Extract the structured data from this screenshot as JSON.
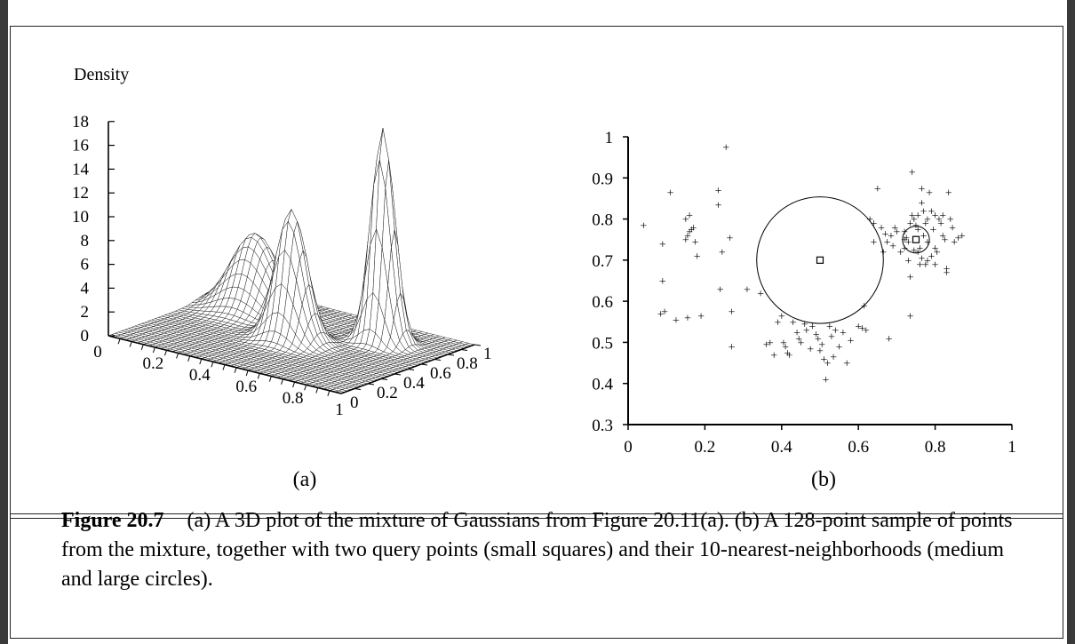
{
  "figure": {
    "label": "Figure 20.7",
    "caption": "(a) A 3D plot of the mixture of Gaussians from Figure 20.11(a). (b) A 128-point sample of points from the mixture, together with two query points (small squares) and their 10-nearest-neighborhoods (medium and large circles)."
  },
  "chart_data": [
    {
      "type": "surface",
      "panel_label": "(a)",
      "zlabel": "Density",
      "z_ticks": [
        "0",
        "2",
        "4",
        "6",
        "8",
        "10",
        "12",
        "14",
        "16",
        "18"
      ],
      "x_ticks": [
        "0",
        "0.2",
        "0.4",
        "0.6",
        "0.8",
        "1"
      ],
      "y_ticks": [
        "0",
        "0.2",
        "0.4",
        "0.6",
        "0.8",
        "1"
      ],
      "xlim": [
        0,
        1
      ],
      "ylim": [
        0,
        1
      ],
      "zlim": [
        0,
        18
      ],
      "components": [
        {
          "mu_x": 0.2,
          "mu_y": 0.75,
          "sigma": 0.09,
          "peak": 6.5
        },
        {
          "mu_x": 0.5,
          "mu_y": 0.5,
          "sigma": 0.06,
          "peak": 11
        },
        {
          "mu_x": 0.75,
          "mu_y": 0.75,
          "sigma": 0.045,
          "peak": 18
        }
      ]
    },
    {
      "type": "scatter",
      "panel_label": "(b)",
      "x_ticks": [
        "0",
        "0.2",
        "0.4",
        "0.6",
        "0.8",
        "1"
      ],
      "y_ticks": [
        "0.3",
        "0.4",
        "0.5",
        "0.6",
        "0.7",
        "0.8",
        "0.9",
        "1"
      ],
      "xlim": [
        0,
        1
      ],
      "ylim": [
        0.3,
        1
      ],
      "marker": "+",
      "query_points": [
        {
          "x": 0.5,
          "y": 0.7,
          "neighborhood_radius": 0.165
        },
        {
          "x": 0.75,
          "y": 0.75,
          "neighborhood_radius": 0.035
        }
      ],
      "points": [
        [
          0.04,
          0.785
        ],
        [
          0.09,
          0.74
        ],
        [
          0.11,
          0.865
        ],
        [
          0.09,
          0.65
        ],
        [
          0.085,
          0.57
        ],
        [
          0.095,
          0.575
        ],
        [
          0.125,
          0.555
        ],
        [
          0.155,
          0.56
        ],
        [
          0.19,
          0.565
        ],
        [
          0.15,
          0.8
        ],
        [
          0.16,
          0.81
        ],
        [
          0.155,
          0.76
        ],
        [
          0.165,
          0.775
        ],
        [
          0.175,
          0.745
        ],
        [
          0.18,
          0.71
        ],
        [
          0.16,
          0.77
        ],
        [
          0.15,
          0.75
        ],
        [
          0.17,
          0.78
        ],
        [
          0.235,
          0.87
        ],
        [
          0.235,
          0.835
        ],
        [
          0.255,
          0.975
        ],
        [
          0.245,
          0.72
        ],
        [
          0.265,
          0.755
        ],
        [
          0.24,
          0.63
        ],
        [
          0.27,
          0.575
        ],
        [
          0.27,
          0.49
        ],
        [
          0.31,
          0.63
        ],
        [
          0.345,
          0.62
        ],
        [
          0.38,
          0.47
        ],
        [
          0.37,
          0.5
        ],
        [
          0.36,
          0.495
        ],
        [
          0.39,
          0.55
        ],
        [
          0.4,
          0.565
        ],
        [
          0.405,
          0.5
        ],
        [
          0.41,
          0.49
        ],
        [
          0.415,
          0.475
        ],
        [
          0.42,
          0.47
        ],
        [
          0.43,
          0.55
        ],
        [
          0.44,
          0.525
        ],
        [
          0.445,
          0.51
        ],
        [
          0.45,
          0.5
        ],
        [
          0.46,
          0.545
        ],
        [
          0.465,
          0.53
        ],
        [
          0.475,
          0.485
        ],
        [
          0.48,
          0.54
        ],
        [
          0.49,
          0.52
        ],
        [
          0.495,
          0.51
        ],
        [
          0.5,
          0.48
        ],
        [
          0.505,
          0.495
        ],
        [
          0.51,
          0.46
        ],
        [
          0.515,
          0.41
        ],
        [
          0.52,
          0.45
        ],
        [
          0.525,
          0.54
        ],
        [
          0.53,
          0.515
        ],
        [
          0.535,
          0.465
        ],
        [
          0.54,
          0.53
        ],
        [
          0.55,
          0.49
        ],
        [
          0.56,
          0.525
        ],
        [
          0.57,
          0.45
        ],
        [
          0.58,
          0.505
        ],
        [
          0.6,
          0.54
        ],
        [
          0.61,
          0.535
        ],
        [
          0.615,
          0.59
        ],
        [
          0.62,
          0.53
        ],
        [
          0.63,
          0.8
        ],
        [
          0.64,
          0.79
        ],
        [
          0.64,
          0.745
        ],
        [
          0.65,
          0.875
        ],
        [
          0.66,
          0.78
        ],
        [
          0.665,
          0.72
        ],
        [
          0.67,
          0.765
        ],
        [
          0.675,
          0.745
        ],
        [
          0.68,
          0.51
        ],
        [
          0.685,
          0.76
        ],
        [
          0.69,
          0.735
        ],
        [
          0.695,
          0.78
        ],
        [
          0.7,
          0.77
        ],
        [
          0.71,
          0.72
        ],
        [
          0.72,
          0.77
        ],
        [
          0.725,
          0.755
        ],
        [
          0.73,
          0.745
        ],
        [
          0.735,
          0.565
        ],
        [
          0.735,
          0.66
        ],
        [
          0.74,
          0.915
        ],
        [
          0.74,
          0.81
        ],
        [
          0.745,
          0.8
        ],
        [
          0.75,
          0.785
        ],
        [
          0.755,
          0.775
        ],
        [
          0.76,
          0.73
        ],
        [
          0.76,
          0.69
        ],
        [
          0.765,
          0.875
        ],
        [
          0.765,
          0.84
        ],
        [
          0.77,
          0.76
        ],
        [
          0.775,
          0.79
        ],
        [
          0.78,
          0.745
        ],
        [
          0.78,
          0.7
        ],
        [
          0.785,
          0.865
        ],
        [
          0.79,
          0.82
        ],
        [
          0.795,
          0.775
        ],
        [
          0.8,
          0.73
        ],
        [
          0.805,
          0.72
        ],
        [
          0.81,
          0.8
        ],
        [
          0.815,
          0.79
        ],
        [
          0.82,
          0.76
        ],
        [
          0.825,
          0.75
        ],
        [
          0.83,
          0.68
        ],
        [
          0.835,
          0.865
        ],
        [
          0.84,
          0.8
        ],
        [
          0.845,
          0.78
        ],
        [
          0.85,
          0.745
        ],
        [
          0.86,
          0.755
        ],
        [
          0.87,
          0.76
        ],
        [
          0.72,
          0.75
        ],
        [
          0.745,
          0.725
        ],
        [
          0.755,
          0.72
        ],
        [
          0.765,
          0.705
        ],
        [
          0.775,
          0.69
        ],
        [
          0.79,
          0.71
        ],
        [
          0.8,
          0.69
        ],
        [
          0.83,
          0.67
        ],
        [
          0.73,
          0.7
        ],
        [
          0.72,
          0.73
        ],
        [
          0.735,
          0.79
        ],
        [
          0.755,
          0.81
        ],
        [
          0.77,
          0.82
        ],
        [
          0.78,
          0.8
        ],
        [
          0.8,
          0.81
        ],
        [
          0.82,
          0.81
        ]
      ]
    }
  ]
}
